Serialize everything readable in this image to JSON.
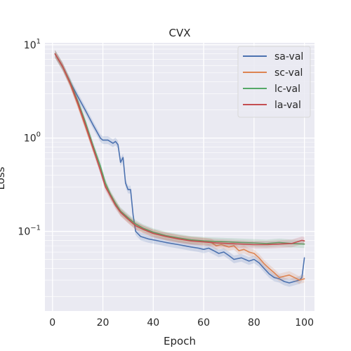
{
  "chart_data": {
    "type": "line",
    "title": "CVX",
    "xlabel": "Epoch",
    "ylabel": "Loss",
    "xscale": "linear",
    "yscale": "log",
    "xlim": [
      -3,
      104
    ],
    "ylim": [
      0.014,
      10.5
    ],
    "xticks": [
      0,
      20,
      40,
      60,
      80,
      100
    ],
    "xtick_labels": [
      "0",
      "20",
      "40",
      "60",
      "80",
      "100"
    ],
    "yticks": [
      0.1,
      1,
      10
    ],
    "ytick_labels": [
      {
        "base": "10",
        "exp": "−1"
      },
      {
        "base": "10",
        "exp": "0"
      },
      {
        "base": "10",
        "exp": "1"
      }
    ],
    "grid": true,
    "legend_position": "top-right",
    "series": [
      {
        "name": "sa-val",
        "color": "#4c72b0",
        "x": [
          1,
          4,
          7,
          10,
          13,
          16,
          19,
          20,
          22,
          24,
          25,
          26,
          27,
          28,
          29,
          30,
          31,
          32,
          33,
          35,
          38,
          41,
          45,
          50,
          55,
          58,
          60,
          62,
          64,
          66,
          68,
          70,
          72,
          75,
          78,
          80,
          82,
          84,
          86,
          88,
          90,
          92,
          94,
          96,
          98,
          99,
          100
        ],
        "y": [
          8.0,
          5.8,
          4.0,
          2.8,
          2.0,
          1.4,
          1.0,
          0.95,
          0.95,
          0.88,
          0.92,
          0.85,
          0.55,
          0.62,
          0.33,
          0.28,
          0.28,
          0.15,
          0.1,
          0.088,
          0.083,
          0.08,
          0.076,
          0.072,
          0.068,
          0.066,
          0.064,
          0.066,
          0.062,
          0.058,
          0.06,
          0.055,
          0.05,
          0.052,
          0.048,
          0.05,
          0.046,
          0.04,
          0.035,
          0.032,
          0.031,
          0.029,
          0.028,
          0.029,
          0.03,
          0.032,
          0.052
        ]
      },
      {
        "name": "sc-val",
        "color": "#dd8452",
        "x": [
          1,
          4,
          7,
          10,
          13,
          16,
          19,
          21,
          23,
          25,
          27,
          30,
          33,
          36,
          40,
          45,
          50,
          55,
          60,
          63,
          65,
          67,
          70,
          72,
          74,
          76,
          78,
          80,
          82,
          84,
          86,
          88,
          90,
          92,
          94,
          96,
          98,
          100
        ],
        "y": [
          8.0,
          5.8,
          3.8,
          2.3,
          1.35,
          0.78,
          0.46,
          0.32,
          0.24,
          0.2,
          0.16,
          0.135,
          0.115,
          0.105,
          0.095,
          0.088,
          0.083,
          0.08,
          0.078,
          0.076,
          0.07,
          0.072,
          0.068,
          0.07,
          0.062,
          0.064,
          0.06,
          0.058,
          0.052,
          0.045,
          0.04,
          0.036,
          0.032,
          0.033,
          0.034,
          0.032,
          0.03,
          0.031
        ]
      },
      {
        "name": "lc-val",
        "color": "#55a868",
        "x": [
          1,
          4,
          7,
          10,
          13,
          16,
          19,
          21,
          23,
          25,
          27,
          30,
          33,
          36,
          40,
          45,
          50,
          55,
          60,
          65,
          70,
          75,
          80,
          85,
          90,
          95,
          100
        ],
        "y": [
          8.0,
          5.9,
          4.0,
          2.5,
          1.5,
          0.85,
          0.5,
          0.33,
          0.25,
          0.2,
          0.165,
          0.14,
          0.12,
          0.108,
          0.098,
          0.09,
          0.085,
          0.081,
          0.079,
          0.078,
          0.077,
          0.076,
          0.075,
          0.074,
          0.076,
          0.074,
          0.073
        ]
      },
      {
        "name": "la-val",
        "color": "#c44e52",
        "x": [
          1,
          4,
          7,
          10,
          13,
          16,
          19,
          21,
          23,
          25,
          27,
          30,
          33,
          36,
          40,
          45,
          50,
          55,
          60,
          65,
          70,
          75,
          80,
          85,
          90,
          95,
          99,
          100
        ],
        "y": [
          8.0,
          5.9,
          3.9,
          2.4,
          1.4,
          0.8,
          0.45,
          0.3,
          0.24,
          0.19,
          0.16,
          0.135,
          0.115,
          0.105,
          0.095,
          0.088,
          0.083,
          0.079,
          0.077,
          0.075,
          0.074,
          0.073,
          0.072,
          0.072,
          0.073,
          0.074,
          0.08,
          0.079
        ]
      }
    ]
  }
}
